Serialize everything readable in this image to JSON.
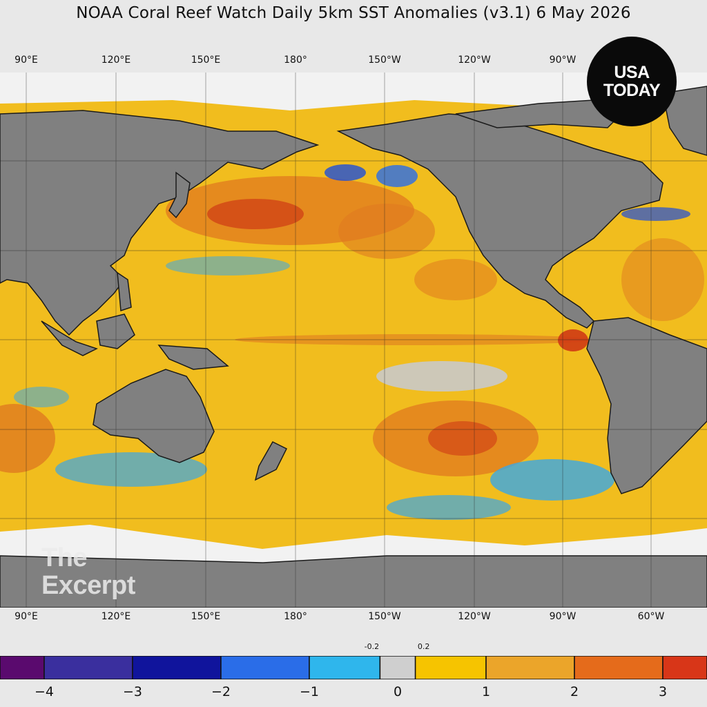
{
  "title": "NOAA Coral Reef Watch Daily 5km SST Anomalies  (v3.1)   6 May 2026",
  "top_longitudes": [
    "90°E",
    "120°E",
    "150°E",
    "180°",
    "150°W",
    "120°W",
    "90°W"
  ],
  "bottom_longitudes": [
    "90°E",
    "120°E",
    "150°E",
    "180°",
    "150°W",
    "120°W",
    "90°W",
    "60°W"
  ],
  "logo": {
    "line1": "USA",
    "line2": "TODAY"
  },
  "watermark": {
    "line1": "The",
    "line2": "Excerpt"
  },
  "colorbar": {
    "min": -4.5,
    "max": 3.5,
    "bins": [
      {
        "from": -4.5,
        "to": -4,
        "color": "#5a0a6e"
      },
      {
        "from": -4,
        "to": -3,
        "color": "#3a2f9e"
      },
      {
        "from": -3,
        "to": -2,
        "color": "#10149c"
      },
      {
        "from": -2,
        "to": -1,
        "color": "#2a6de8"
      },
      {
        "from": -1,
        "to": -0.2,
        "color": "#2fb6ec"
      },
      {
        "from": -0.2,
        "to": 0.2,
        "color": "#cfcfcf"
      },
      {
        "from": 0.2,
        "to": 1,
        "color": "#f6c400"
      },
      {
        "from": 1,
        "to": 2,
        "color": "#eba52a"
      },
      {
        "from": 2,
        "to": 3,
        "color": "#e56b1b"
      },
      {
        "from": 3,
        "to": 3.5,
        "color": "#d83618"
      }
    ],
    "small_labels": [
      {
        "value": -0.2,
        "text": "-0.2"
      },
      {
        "value": 0.2,
        "text": "0.2"
      }
    ],
    "tick_labels": [
      {
        "value": -4,
        "text": "−4"
      },
      {
        "value": -3,
        "text": "−3"
      },
      {
        "value": -2,
        "text": "−2"
      },
      {
        "value": -1,
        "text": "−1"
      },
      {
        "value": 0,
        "text": "0"
      },
      {
        "value": 1,
        "text": "1"
      },
      {
        "value": 2,
        "text": "2"
      },
      {
        "value": 3,
        "text": "3"
      }
    ]
  },
  "colors": {
    "land": "#808080",
    "ice": "#f2f2f2",
    "ocean_base": "#f1bd1e",
    "warm": "#e07a1f",
    "hot": "#cf3a14",
    "cool": "#3aa7e6",
    "cold": "#1f4fd8",
    "neutral": "#c9c9c9"
  }
}
